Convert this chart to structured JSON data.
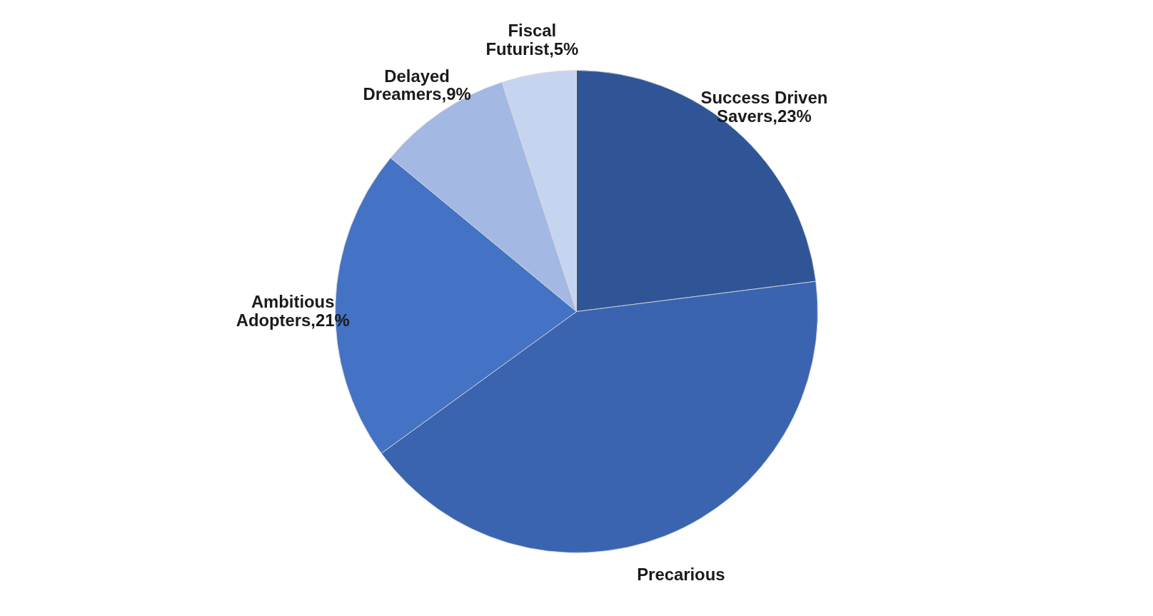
{
  "chart_data": {
    "type": "pie",
    "categories": [
      "Success Driven Savers",
      "Precarious",
      "Ambitious Adopters",
      "Delayed Dreamers",
      "Fiscal Futurist"
    ],
    "values": [
      23,
      42,
      21,
      9,
      5
    ],
    "value_labels": [
      "23%",
      null,
      "21%",
      "9%",
      "5%"
    ],
    "colors": [
      "#2f5597",
      "#3a64b0",
      "#4472c4",
      "#a3b8e2",
      "#c6d4ef"
    ]
  }
}
